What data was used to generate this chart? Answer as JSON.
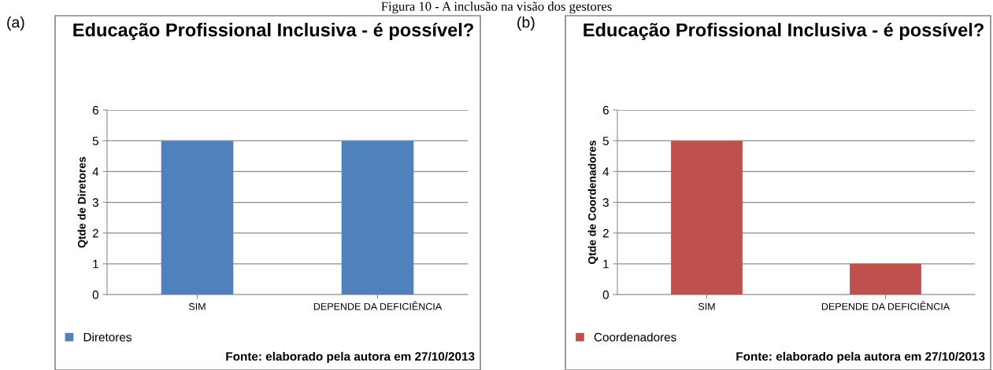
{
  "chart_data": [
    {
      "type": "bar",
      "title": "Educação Profissional Inclusiva - é possível?",
      "ylabel": "Qtde de Diretores",
      "categories": [
        "SIM",
        "DEPENDE DA DEFICIÊNCIA"
      ],
      "series": [
        {
          "name": "Diretores",
          "color": "#4f81bd",
          "values": [
            5,
            5
          ]
        }
      ],
      "ylim": [
        0,
        6
      ],
      "yticks": [
        0,
        1,
        2,
        3,
        4,
        5,
        6
      ],
      "grid": "y",
      "legend": "bottom left",
      "annotations": [
        "(a)",
        "Fonte: elaborado pela autora em 27/10/2013",
        "Figura 10 - A inclusão na visão dos gestores"
      ]
    },
    {
      "type": "bar",
      "title": "Educação Profissional Inclusiva - é possível?",
      "ylabel": "Qtde de Coordenadores",
      "categories": [
        "SIM",
        "DEPENDE DA DEFICIÊNCIA"
      ],
      "series": [
        {
          "name": "Coordenadores",
          "color": "#c0504d",
          "values": [
            5,
            1
          ]
        }
      ],
      "ylim": [
        0,
        6
      ],
      "yticks": [
        0,
        1,
        2,
        3,
        4,
        5,
        6
      ],
      "grid": "y",
      "legend": "bottom left",
      "annotations": [
        "(b)",
        "Fonte: elaborado pela autora em 27/10/2013"
      ]
    }
  ]
}
